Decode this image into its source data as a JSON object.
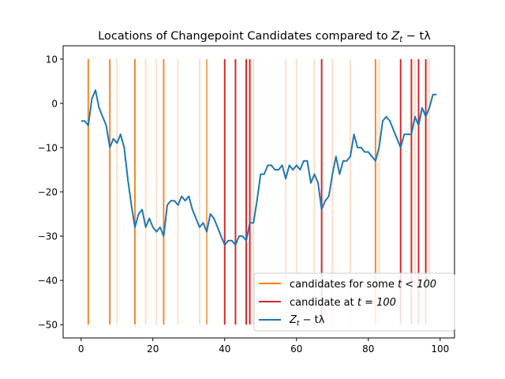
{
  "chart_data": {
    "type": "line",
    "title": "Locations of Changepoint Candidates compared to Z_t − tλ",
    "title_parts": {
      "prefix": "Locations of Changepoint Candidates compared to ",
      "main": "Z",
      "sub": "t",
      "suffix": " − tλ"
    },
    "xlabel": "",
    "ylabel": "",
    "xlim": [
      -5,
      104
    ],
    "ylim": [
      -53,
      13
    ],
    "xticks": [
      0,
      20,
      40,
      60,
      80,
      100
    ],
    "yticks": [
      -50,
      -40,
      -30,
      -20,
      -10,
      0,
      10
    ],
    "vline_range": [
      -50,
      10
    ],
    "legend_position": "lower right",
    "grid": false,
    "candidate_lines": [
      {
        "x": 2,
        "intensity": "strong"
      },
      {
        "x": 8,
        "intensity": "strong"
      },
      {
        "x": 10,
        "intensity": "light"
      },
      {
        "x": 15,
        "intensity": "strong"
      },
      {
        "x": 18,
        "intensity": "light"
      },
      {
        "x": 21,
        "intensity": "light"
      },
      {
        "x": 23,
        "intensity": "strong"
      },
      {
        "x": 27,
        "intensity": "light"
      },
      {
        "x": 33,
        "intensity": "light"
      },
      {
        "x": 35,
        "intensity": "medium"
      },
      {
        "x": 48,
        "intensity": "light"
      },
      {
        "x": 57,
        "intensity": "light"
      },
      {
        "x": 60,
        "intensity": "light"
      },
      {
        "x": 65,
        "intensity": "light"
      },
      {
        "x": 70,
        "intensity": "light"
      },
      {
        "x": 75,
        "intensity": "light"
      },
      {
        "x": 82,
        "intensity": "strong"
      },
      {
        "x": 83,
        "intensity": "light"
      },
      {
        "x": 93,
        "intensity": "light"
      },
      {
        "x": 97,
        "intensity": "light"
      }
    ],
    "final_candidates": [
      40,
      43,
      46,
      47,
      67,
      89,
      92,
      94,
      96
    ],
    "series": [
      {
        "name": "Z_t − tλ",
        "x": [
          0,
          1,
          2,
          3,
          4,
          5,
          6,
          7,
          8,
          9,
          10,
          11,
          12,
          13,
          14,
          15,
          16,
          17,
          18,
          19,
          20,
          21,
          22,
          23,
          24,
          25,
          26,
          27,
          28,
          29,
          30,
          31,
          32,
          33,
          34,
          35,
          36,
          37,
          38,
          39,
          40,
          41,
          42,
          43,
          44,
          45,
          46,
          47,
          48,
          49,
          50,
          51,
          52,
          53,
          54,
          55,
          56,
          57,
          58,
          59,
          60,
          61,
          62,
          63,
          64,
          65,
          66,
          67,
          68,
          69,
          70,
          71,
          72,
          73,
          74,
          75,
          76,
          77,
          78,
          79,
          80,
          81,
          82,
          83,
          84,
          85,
          86,
          87,
          88,
          89,
          90,
          91,
          92,
          93,
          94,
          95,
          96,
          97,
          98,
          99
        ],
        "y": [
          -4,
          -4,
          -5,
          1,
          3,
          -1,
          -3,
          -5,
          -10,
          -8,
          -9,
          -7,
          -10,
          -17,
          -23,
          -28,
          -25,
          -24,
          -28,
          -26,
          -28,
          -29,
          -28,
          -30,
          -23,
          -22,
          -22,
          -23,
          -21,
          -22,
          -21,
          -24,
          -26,
          -28,
          -27,
          -29,
          -25,
          -26,
          -28,
          -30,
          -32,
          -31,
          -31,
          -32,
          -30,
          -30,
          -31,
          -27,
          -27,
          -22,
          -16,
          -16,
          -14,
          -14,
          -15,
          -15,
          -14,
          -17,
          -14,
          -15,
          -14,
          -15,
          -13,
          -13,
          -18,
          -16,
          -18,
          -24,
          -22,
          -21,
          -16,
          -12,
          -16,
          -13,
          -13,
          -12,
          -7,
          -10,
          -10,
          -11,
          -11,
          -12,
          -13,
          -10,
          -4,
          -3,
          -4,
          -6,
          -8,
          -10,
          -7,
          -7,
          -7,
          -3,
          -5,
          -1,
          -3,
          -1,
          2,
          2
        ]
      }
    ]
  },
  "legend": {
    "items": [
      {
        "label_prefix": "candidates for some ",
        "label_math": "t < 100",
        "color": "#ff7f0e"
      },
      {
        "label_prefix": "candidate at ",
        "label_math": "t = 100",
        "color": "#d62728"
      },
      {
        "label_main": "Z",
        "label_sub": "t",
        "label_suffix": " − tλ",
        "color": "#1f77b4"
      }
    ]
  },
  "colors": {
    "strong": "#f5892a",
    "medium": "#f8a963",
    "light": "#fde0c8",
    "final": "#d62728",
    "line": "#1f77b4"
  }
}
